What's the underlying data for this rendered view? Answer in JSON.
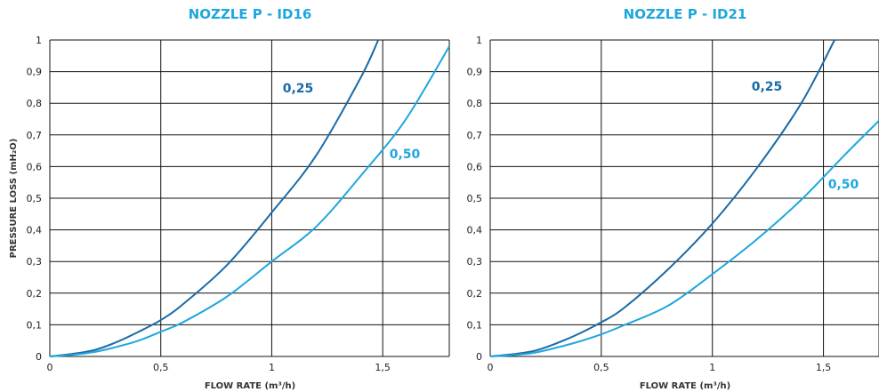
{
  "colors": {
    "dark": "#1a6aa6",
    "light": "#1ea7de",
    "grid": "#111111",
    "title": "#1ea7de"
  },
  "chart_data": [
    {
      "type": "line",
      "title": "NOZZLE P - ID16",
      "xlabel": "FLOW RATE (m³/h)",
      "ylabel": "PRESSURE LOSS (mH₂O)",
      "xlim": [
        0,
        1.8
      ],
      "ylim": [
        0,
        1
      ],
      "x_ticks": [
        0,
        0.5,
        1,
        1.5
      ],
      "x_tick_labels": [
        "0",
        "0,5",
        "1",
        "1,5"
      ],
      "y_ticks": [
        0,
        0.1,
        0.2,
        0.3,
        0.4,
        0.5,
        0.6,
        0.7,
        0.8,
        0.9,
        1
      ],
      "y_tick_labels": [
        "0",
        "0,1",
        "0,2",
        "0,3",
        "0,4",
        "0,5",
        "0,6",
        "0,7",
        "0,8",
        "0,9",
        "1"
      ],
      "grid": true,
      "series": [
        {
          "name": "0,25",
          "color": "#1a6aa6",
          "x": [
            0,
            0.1,
            0.2,
            0.3,
            0.4,
            0.5,
            0.6,
            0.8,
            1.0,
            1.2,
            1.4,
            1.48
          ],
          "y": [
            0,
            0.008,
            0.02,
            0.045,
            0.078,
            0.115,
            0.165,
            0.29,
            0.455,
            0.635,
            0.88,
            1.0
          ]
        },
        {
          "name": "0,50",
          "color": "#1ea7de",
          "x": [
            0,
            0.1,
            0.2,
            0.3,
            0.4,
            0.5,
            0.6,
            0.8,
            1.0,
            1.2,
            1.4,
            1.6,
            1.8
          ],
          "y": [
            0,
            0.005,
            0.014,
            0.03,
            0.05,
            0.078,
            0.108,
            0.19,
            0.3,
            0.41,
            0.57,
            0.745,
            0.98
          ]
        }
      ]
    },
    {
      "type": "line",
      "title": "NOZZLE P - ID21",
      "xlabel": "FLOW RATE (m³/h)",
      "ylabel": "",
      "xlim": [
        0,
        1.75
      ],
      "ylim": [
        0,
        1
      ],
      "x_ticks": [
        0,
        0.5,
        1,
        1.5
      ],
      "x_tick_labels": [
        "0",
        "0,5",
        "1",
        "1,5"
      ],
      "y_ticks": [
        0,
        0.1,
        0.2,
        0.3,
        0.4,
        0.5,
        0.6,
        0.7,
        0.8,
        0.9,
        1
      ],
      "y_tick_labels": [
        "0",
        "0,1",
        "0,2",
        "0,3",
        "0,4",
        "0,5",
        "0,6",
        "0,7",
        "0,8",
        "0,9",
        "1"
      ],
      "grid": true,
      "series": [
        {
          "name": "0,25",
          "color": "#1a6aa6",
          "x": [
            0,
            0.1,
            0.2,
            0.3,
            0.4,
            0.5,
            0.6,
            0.8,
            1.0,
            1.2,
            1.4,
            1.55
          ],
          "y": [
            0,
            0.007,
            0.018,
            0.042,
            0.072,
            0.108,
            0.152,
            0.275,
            0.42,
            0.595,
            0.8,
            1.0
          ]
        },
        {
          "name": "0,50",
          "color": "#1ea7de",
          "x": [
            0,
            0.1,
            0.2,
            0.3,
            0.4,
            0.5,
            0.6,
            0.8,
            1.0,
            1.2,
            1.4,
            1.6,
            1.75
          ],
          "y": [
            0,
            0.004,
            0.012,
            0.028,
            0.047,
            0.07,
            0.098,
            0.16,
            0.26,
            0.37,
            0.495,
            0.64,
            0.745
          ]
        }
      ]
    }
  ]
}
